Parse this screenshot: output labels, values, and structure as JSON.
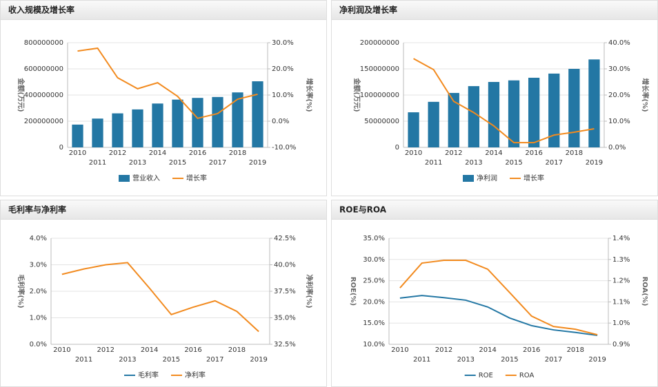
{
  "chart_data": [
    {
      "type": "bar",
      "title": "收入规模及增长率",
      "y_label": "金额(万元)",
      "y2_label": "增长率(%)",
      "categories": [
        "2010",
        "2011",
        "2012",
        "2013",
        "2014",
        "2015",
        "2016",
        "2017",
        "2018",
        "2019"
      ],
      "series": [
        {
          "name": "营业收入",
          "type": "bar",
          "color": "#2377a4",
          "values": [
            174000000,
            220000000,
            260000000,
            290000000,
            335000000,
            365000000,
            378000000,
            385000000,
            420000000,
            505000000
          ]
        },
        {
          "name": "增长率",
          "type": "line",
          "axis": "y2",
          "color": "#f28a1e",
          "values": [
            26.8,
            27.9,
            16.6,
            12.4,
            14.7,
            9.5,
            1.1,
            2.9,
            8.4,
            10.3
          ]
        }
      ],
      "ylim": [
        0,
        800000000
      ],
      "yticks": [
        0,
        200000000,
        400000000,
        600000000,
        800000000
      ],
      "y2lim": [
        -10,
        30
      ],
      "y2ticks": [
        {
          "value": -10,
          "label": "-10.0%"
        },
        {
          "value": 0,
          "label": "0.0%"
        },
        {
          "value": 10,
          "label": "10.0%"
        },
        {
          "value": 20,
          "label": "20.0%"
        },
        {
          "value": 30,
          "label": "30.0%"
        }
      ],
      "grid": true,
      "legend": "bottom"
    },
    {
      "type": "bar",
      "title": "净利润及增长率",
      "y_label": "金额(万元)",
      "y2_label": "增长率(%)",
      "categories": [
        "2010",
        "2011",
        "2012",
        "2013",
        "2014",
        "2015",
        "2016",
        "2017",
        "2018",
        "2019"
      ],
      "series": [
        {
          "name": "净利润",
          "type": "bar",
          "color": "#2377a4",
          "values": [
            67000000,
            87000000,
            104000000,
            117000000,
            125000000,
            128000000,
            133000000,
            141000000,
            150000000,
            168000000
          ]
        },
        {
          "name": "增长率",
          "type": "line",
          "axis": "y2",
          "color": "#f28a1e",
          "values": [
            33.9,
            29.7,
            17.6,
            13.3,
            8.2,
            1.8,
            1.8,
            4.7,
            5.8,
            7.1
          ]
        }
      ],
      "ylim": [
        0,
        200000000
      ],
      "yticks": [
        0,
        50000000,
        100000000,
        150000000,
        200000000
      ],
      "y2lim": [
        0,
        40
      ],
      "y2ticks": [
        {
          "value": 0,
          "label": "0.0%"
        },
        {
          "value": 10,
          "label": "10.0%"
        },
        {
          "value": 20,
          "label": "20.0%"
        },
        {
          "value": 30,
          "label": "30.0%"
        },
        {
          "value": 40,
          "label": "40.0%"
        }
      ],
      "grid": true,
      "legend": "bottom"
    },
    {
      "type": "line",
      "title": "毛利率与净利率",
      "y_label": "毛利率(%)",
      "y2_label": "净利率(%)",
      "categories": [
        "2010",
        "2011",
        "2012",
        "2013",
        "2014",
        "2015",
        "2016",
        "2017",
        "2018",
        "2019"
      ],
      "series": [
        {
          "name": "毛利率",
          "type": "line",
          "color": "#2377a4",
          "values": [
            null,
            null,
            null,
            null,
            null,
            null,
            null,
            null,
            null,
            null
          ]
        },
        {
          "name": "净利率",
          "type": "line",
          "axis": "y2",
          "color": "#f28a1e",
          "values": [
            39.1,
            39.6,
            40.0,
            40.2,
            37.8,
            35.3,
            36.0,
            36.6,
            35.6,
            33.7
          ]
        }
      ],
      "ylim": [
        0,
        4
      ],
      "yticks": [
        {
          "value": 0,
          "label": "0.0%"
        },
        {
          "value": 1,
          "label": "1.0%"
        },
        {
          "value": 2,
          "label": "2.0%"
        },
        {
          "value": 3,
          "label": "3.0%"
        },
        {
          "value": 4,
          "label": "4.0%"
        }
      ],
      "y2lim": [
        32.5,
        42.5
      ],
      "y2ticks": [
        {
          "value": 32.5,
          "label": "32.5%"
        },
        {
          "value": 35,
          "label": "35.0%"
        },
        {
          "value": 37.5,
          "label": "37.5%"
        },
        {
          "value": 40,
          "label": "40.0%"
        },
        {
          "value": 42.5,
          "label": "42.5%"
        }
      ],
      "grid": true,
      "legend": "bottom"
    },
    {
      "type": "line",
      "title": "ROE与ROA",
      "y_label": "ROE(%)",
      "y2_label": "ROA(%)",
      "categories": [
        "2010",
        "2011",
        "2012",
        "2013",
        "2014",
        "2015",
        "2016",
        "2017",
        "2018",
        "2019"
      ],
      "series": [
        {
          "name": "ROE",
          "type": "line",
          "color": "#2377a4",
          "values": [
            20.9,
            21.5,
            21.0,
            20.4,
            18.8,
            16.2,
            14.4,
            13.4,
            12.8,
            12.1
          ]
        },
        {
          "name": "ROA",
          "type": "line",
          "axis": "y2",
          "color": "#f28a1e",
          "values": [
            1.166,
            1.283,
            1.296,
            1.296,
            1.254,
            1.144,
            1.033,
            0.984,
            0.971,
            0.945
          ]
        }
      ],
      "ylim": [
        10,
        35
      ],
      "yticks": [
        {
          "value": 10,
          "label": "10.0%"
        },
        {
          "value": 15,
          "label": "15.0%"
        },
        {
          "value": 20,
          "label": "20.0%"
        },
        {
          "value": 25,
          "label": "25.0%"
        },
        {
          "value": 30,
          "label": "30.0%"
        },
        {
          "value": 35,
          "label": "35.0%"
        }
      ],
      "y2lim": [
        0.9,
        1.4
      ],
      "y2ticks": [
        {
          "value": 0.9,
          "label": "0.9%"
        },
        {
          "value": 1.0,
          "label": "1.0%"
        },
        {
          "value": 1.1,
          "label": "1.1%"
        },
        {
          "value": 1.2,
          "label": "1.2%"
        },
        {
          "value": 1.3,
          "label": "1.3%"
        },
        {
          "value": 1.4,
          "label": "1.4%"
        }
      ],
      "grid": true,
      "legend": "bottom"
    }
  ]
}
